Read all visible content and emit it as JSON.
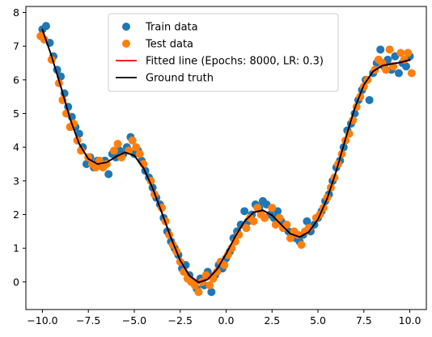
{
  "chart_data": {
    "type": "scatter",
    "title": "",
    "xlabel": "",
    "ylabel": "",
    "xlim": [
      -10.9,
      10.9
    ],
    "ylim": [
      -0.82,
      8.18
    ],
    "x_ticks": [
      -10.0,
      -7.5,
      -5.0,
      -2.5,
      0.0,
      2.5,
      5.0,
      7.5,
      10.0
    ],
    "y_ticks": [
      0,
      1,
      2,
      3,
      4,
      5,
      6,
      7,
      8
    ],
    "x_tick_labels": [
      "−10.0",
      "−7.5",
      "−5.0",
      "−2.5",
      "0.0",
      "2.5",
      "5.0",
      "7.5",
      "10.0"
    ],
    "y_tick_labels": [
      "0",
      "1",
      "2",
      "3",
      "4",
      "5",
      "6",
      "7",
      "8"
    ],
    "grid": false,
    "legend_position": "top-center",
    "colors": {
      "train": "#1f77b4",
      "test": "#ff7f0e",
      "fitted": "#ff0000",
      "truth": "#000000"
    },
    "legend": [
      {
        "key": "train",
        "label": "Train data",
        "marker": "circle",
        "color": "#1f77b4"
      },
      {
        "key": "test",
        "label": "Test data",
        "marker": "circle",
        "color": "#ff7f0e"
      },
      {
        "key": "fitted",
        "label": "Fitted line (Epochs: 8000, LR: 0.3)",
        "marker": "line",
        "color": "#ff0000"
      },
      {
        "key": "truth",
        "label": "Ground truth",
        "marker": "line",
        "color": "#000000"
      }
    ],
    "series": [
      {
        "name": "Train data",
        "kind": "scatter",
        "color": "#1f77b4",
        "points": [
          [
            -10.0,
            7.5
          ],
          [
            -9.8,
            7.6
          ],
          [
            -9.6,
            7.1
          ],
          [
            -9.4,
            6.7
          ],
          [
            -9.2,
            6.3
          ],
          [
            -9.0,
            6.1
          ],
          [
            -8.8,
            5.6
          ],
          [
            -8.6,
            5.2
          ],
          [
            -8.4,
            4.9
          ],
          [
            -8.2,
            4.6
          ],
          [
            -8.0,
            4.4
          ],
          [
            -7.8,
            4.0
          ],
          [
            -7.6,
            3.5
          ],
          [
            -7.4,
            3.7
          ],
          [
            -7.2,
            3.4
          ],
          [
            -7.0,
            3.6
          ],
          [
            -6.8,
            3.5
          ],
          [
            -6.6,
            3.6
          ],
          [
            -6.4,
            3.2
          ],
          [
            -6.2,
            3.8
          ],
          [
            -6.0,
            3.7
          ],
          [
            -5.8,
            3.9
          ],
          [
            -5.6,
            3.8
          ],
          [
            -5.4,
            4.0
          ],
          [
            -5.2,
            4.3
          ],
          [
            -5.0,
            3.8
          ],
          [
            -4.8,
            3.9
          ],
          [
            -4.6,
            3.6
          ],
          [
            -4.4,
            3.3
          ],
          [
            -4.2,
            3.1
          ],
          [
            -4.0,
            2.8
          ],
          [
            -3.8,
            2.5
          ],
          [
            -3.6,
            2.3
          ],
          [
            -3.4,
            1.9
          ],
          [
            -3.2,
            1.5
          ],
          [
            -3.0,
            1.2
          ],
          [
            -2.8,
            1.0
          ],
          [
            -2.6,
            0.8
          ],
          [
            -2.4,
            0.4
          ],
          [
            -2.2,
            0.5
          ],
          [
            -2.0,
            0.2
          ],
          [
            -1.8,
            0.0
          ],
          [
            -1.6,
            -0.2
          ],
          [
            -1.4,
            0.1
          ],
          [
            -1.2,
            -0.1
          ],
          [
            -1.0,
            0.3
          ],
          [
            -0.8,
            -0.3
          ],
          [
            -0.6,
            0.2
          ],
          [
            -0.4,
            0.5
          ],
          [
            -0.2,
            0.4
          ],
          [
            0.0,
            0.7
          ],
          [
            0.2,
            0.9
          ],
          [
            0.4,
            1.3
          ],
          [
            0.6,
            1.5
          ],
          [
            0.8,
            1.7
          ],
          [
            1.0,
            2.1
          ],
          [
            1.2,
            1.8
          ],
          [
            1.4,
            2.0
          ],
          [
            1.6,
            2.3
          ],
          [
            1.8,
            2.2
          ],
          [
            2.0,
            2.4
          ],
          [
            2.2,
            2.3
          ],
          [
            2.4,
            2.0
          ],
          [
            2.6,
            1.9
          ],
          [
            2.8,
            2.1
          ],
          [
            3.0,
            1.8
          ],
          [
            3.2,
            1.6
          ],
          [
            3.4,
            1.5
          ],
          [
            3.6,
            1.4
          ],
          [
            3.8,
            1.3
          ],
          [
            4.0,
            1.2
          ],
          [
            4.2,
            1.4
          ],
          [
            4.4,
            1.8
          ],
          [
            4.6,
            1.5
          ],
          [
            4.8,
            1.7
          ],
          [
            5.0,
            1.9
          ],
          [
            5.2,
            2.1
          ],
          [
            5.4,
            2.4
          ],
          [
            5.6,
            2.6
          ],
          [
            5.8,
            3.0
          ],
          [
            6.0,
            3.4
          ],
          [
            6.2,
            3.6
          ],
          [
            6.4,
            4.0
          ],
          [
            6.6,
            4.5
          ],
          [
            6.8,
            4.7
          ],
          [
            7.0,
            5.0
          ],
          [
            7.2,
            5.4
          ],
          [
            7.4,
            5.7
          ],
          [
            7.6,
            6.0
          ],
          [
            7.8,
            5.4
          ],
          [
            8.0,
            6.2
          ],
          [
            8.2,
            6.5
          ],
          [
            8.4,
            6.9
          ],
          [
            8.6,
            6.4
          ],
          [
            8.8,
            6.6
          ],
          [
            9.0,
            6.3
          ],
          [
            9.2,
            6.7
          ],
          [
            9.4,
            6.2
          ],
          [
            9.6,
            6.5
          ],
          [
            9.8,
            6.4
          ],
          [
            10.0,
            6.7
          ]
        ]
      },
      {
        "name": "Test data",
        "kind": "scatter",
        "color": "#ff7f0e",
        "points": [
          [
            -10.1,
            7.3
          ],
          [
            -9.9,
            7.2
          ],
          [
            -9.5,
            6.6
          ],
          [
            -9.1,
            5.9
          ],
          [
            -8.9,
            5.4
          ],
          [
            -8.7,
            5.0
          ],
          [
            -8.5,
            4.6
          ],
          [
            -8.3,
            4.7
          ],
          [
            -8.1,
            4.2
          ],
          [
            -7.9,
            3.9
          ],
          [
            -7.5,
            3.7
          ],
          [
            -7.3,
            3.5
          ],
          [
            -7.1,
            3.4
          ],
          [
            -6.9,
            3.6
          ],
          [
            -6.7,
            3.4
          ],
          [
            -6.5,
            3.5
          ],
          [
            -6.1,
            3.9
          ],
          [
            -5.9,
            4.1
          ],
          [
            -5.7,
            3.7
          ],
          [
            -5.3,
            3.9
          ],
          [
            -5.1,
            4.2
          ],
          [
            -4.9,
            4.0
          ],
          [
            -4.7,
            3.8
          ],
          [
            -4.5,
            3.5
          ],
          [
            -4.1,
            3.0
          ],
          [
            -3.9,
            2.6
          ],
          [
            -3.5,
            2.2
          ],
          [
            -3.3,
            1.8
          ],
          [
            -3.1,
            1.4
          ],
          [
            -2.9,
            1.1
          ],
          [
            -2.7,
            0.9
          ],
          [
            -2.5,
            0.6
          ],
          [
            -2.3,
            0.3
          ],
          [
            -2.1,
            0.1
          ],
          [
            -1.9,
            0.0
          ],
          [
            -1.7,
            -0.1
          ],
          [
            -1.5,
            -0.3
          ],
          [
            -1.3,
            0.0
          ],
          [
            -1.1,
            0.2
          ],
          [
            -0.9,
            -0.1
          ],
          [
            -0.7,
            0.1
          ],
          [
            -0.5,
            0.3
          ],
          [
            -0.3,
            0.6
          ],
          [
            -0.1,
            0.5
          ],
          [
            0.1,
            0.8
          ],
          [
            0.3,
            1.0
          ],
          [
            0.5,
            1.2
          ],
          [
            0.7,
            1.4
          ],
          [
            1.1,
            1.6
          ],
          [
            1.3,
            1.9
          ],
          [
            1.5,
            1.8
          ],
          [
            1.7,
            2.2
          ],
          [
            1.9,
            2.0
          ],
          [
            2.1,
            1.9
          ],
          [
            2.5,
            2.2
          ],
          [
            2.7,
            1.7
          ],
          [
            2.9,
            1.9
          ],
          [
            3.1,
            1.6
          ],
          [
            3.3,
            1.7
          ],
          [
            3.5,
            1.3
          ],
          [
            3.7,
            1.5
          ],
          [
            3.9,
            1.4
          ],
          [
            4.1,
            1.1
          ],
          [
            4.3,
            1.5
          ],
          [
            4.5,
            1.6
          ],
          [
            4.9,
            1.9
          ],
          [
            5.1,
            2.0
          ],
          [
            5.3,
            2.2
          ],
          [
            5.5,
            2.5
          ],
          [
            5.7,
            2.8
          ],
          [
            5.9,
            3.1
          ],
          [
            6.1,
            3.5
          ],
          [
            6.3,
            3.8
          ],
          [
            6.5,
            4.2
          ],
          [
            6.7,
            4.4
          ],
          [
            6.9,
            4.8
          ],
          [
            7.1,
            5.2
          ],
          [
            7.3,
            5.5
          ],
          [
            7.5,
            5.8
          ],
          [
            7.7,
            6.0
          ],
          [
            8.1,
            6.3
          ],
          [
            8.3,
            6.6
          ],
          [
            8.5,
            6.5
          ],
          [
            8.7,
            6.3
          ],
          [
            8.9,
            6.9
          ],
          [
            9.1,
            6.4
          ],
          [
            9.5,
            6.8
          ],
          [
            9.7,
            6.6
          ],
          [
            9.9,
            6.8
          ],
          [
            10.1,
            6.2
          ]
        ]
      },
      {
        "name": "Fitted line (Epochs: 8000, LR: 0.3)",
        "kind": "line",
        "color": "#ff0000",
        "points": [
          [
            -10.0,
            7.47
          ],
          [
            -9.5,
            6.71
          ],
          [
            -9.0,
            5.81
          ],
          [
            -8.5,
            4.86
          ],
          [
            -8.0,
            4.1
          ],
          [
            -7.5,
            3.66
          ],
          [
            -7.0,
            3.5
          ],
          [
            -6.5,
            3.55
          ],
          [
            -6.0,
            3.71
          ],
          [
            -5.5,
            3.84
          ],
          [
            -5.0,
            3.76
          ],
          [
            -4.5,
            3.4
          ],
          [
            -4.0,
            2.8
          ],
          [
            -3.5,
            2.07
          ],
          [
            -3.0,
            1.32
          ],
          [
            -2.5,
            0.65
          ],
          [
            -2.0,
            0.19
          ],
          [
            -1.5,
            0.0
          ],
          [
            -1.0,
            0.09
          ],
          [
            -0.5,
            0.39
          ],
          [
            0.0,
            0.84
          ],
          [
            0.5,
            1.35
          ],
          [
            1.0,
            1.79
          ],
          [
            1.5,
            2.06
          ],
          [
            2.0,
            2.12
          ],
          [
            2.5,
            1.97
          ],
          [
            3.0,
            1.7
          ],
          [
            3.5,
            1.43
          ],
          [
            4.0,
            1.34
          ],
          [
            4.5,
            1.49
          ],
          [
            5.0,
            1.85
          ],
          [
            5.5,
            2.46
          ],
          [
            6.0,
            3.29
          ],
          [
            6.5,
            4.25
          ],
          [
            7.0,
            5.16
          ],
          [
            7.5,
            5.86
          ],
          [
            8.0,
            6.26
          ],
          [
            8.5,
            6.43
          ],
          [
            9.0,
            6.49
          ],
          [
            9.5,
            6.51
          ],
          [
            10.0,
            6.58
          ]
        ]
      },
      {
        "name": "Ground truth",
        "kind": "line",
        "color": "#000000",
        "points": [
          [
            -10.0,
            7.5
          ],
          [
            -9.5,
            6.7
          ],
          [
            -9.0,
            5.8
          ],
          [
            -8.5,
            4.85
          ],
          [
            -8.0,
            4.1
          ],
          [
            -7.5,
            3.65
          ],
          [
            -7.0,
            3.5
          ],
          [
            -6.5,
            3.55
          ],
          [
            -6.0,
            3.72
          ],
          [
            -5.5,
            3.85
          ],
          [
            -5.0,
            3.75
          ],
          [
            -4.5,
            3.38
          ],
          [
            -4.0,
            2.78
          ],
          [
            -3.5,
            2.05
          ],
          [
            -3.0,
            1.3
          ],
          [
            -2.5,
            0.64
          ],
          [
            -2.0,
            0.18
          ],
          [
            -1.5,
            -0.02
          ],
          [
            -1.0,
            0.07
          ],
          [
            -0.5,
            0.37
          ],
          [
            0.0,
            0.83
          ],
          [
            0.5,
            1.35
          ],
          [
            1.0,
            1.8
          ],
          [
            1.5,
            2.07
          ],
          [
            2.0,
            2.13
          ],
          [
            2.5,
            1.98
          ],
          [
            3.0,
            1.7
          ],
          [
            3.5,
            1.43
          ],
          [
            4.0,
            1.33
          ],
          [
            4.5,
            1.48
          ],
          [
            5.0,
            1.86
          ],
          [
            5.5,
            2.48
          ],
          [
            6.0,
            3.3
          ],
          [
            6.5,
            4.25
          ],
          [
            7.0,
            5.15
          ],
          [
            7.5,
            5.85
          ],
          [
            8.0,
            6.25
          ],
          [
            8.5,
            6.42
          ],
          [
            9.0,
            6.47
          ],
          [
            9.5,
            6.52
          ],
          [
            10.0,
            6.6
          ]
        ]
      }
    ]
  }
}
